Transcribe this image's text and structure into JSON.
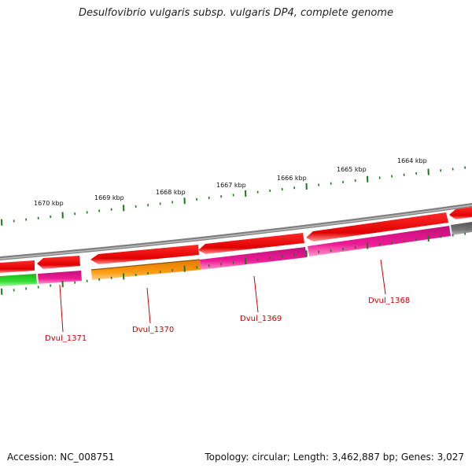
{
  "title": "Desulfovibrio vulgaris subsp. vulgaris DP4, complete genome",
  "footer": {
    "accession": "Accession: NC_008751",
    "summary": "Topology: circular; Length: 3,462,887 bp; Genes: 3,027"
  },
  "colors": {
    "forward_strand": "#ee0000",
    "cog_green": "#22cc22",
    "cog_magenta": "#e0158f",
    "cog_orange": "#ff9900",
    "cog_gray": "#666666",
    "backbone": "#888888",
    "tick": "#1a7a1a",
    "gene_label": "#cc0000"
  },
  "kbp_labels": [
    "1670 kbp",
    "1669 kbp",
    "1668 kbp",
    "1667 kbp",
    "1666 kbp",
    "1665 kbp",
    "1664 kbp"
  ],
  "gene_labels": [
    "Dvul_1371",
    "Dvul_1370",
    "Dvul_1369",
    "Dvul_1368"
  ]
}
